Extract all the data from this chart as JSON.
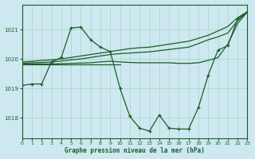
{
  "background_color": "#cde8f0",
  "grid_color": "#b0d8c8",
  "line_color": "#1a5c28",
  "title": "Graphe pression niveau de la mer (hPa)",
  "xlim": [
    0,
    23
  ],
  "ylim": [
    1017.3,
    1021.85
  ],
  "yticks": [
    1018,
    1019,
    1020,
    1021
  ],
  "xticks": [
    0,
    1,
    2,
    3,
    4,
    5,
    6,
    7,
    8,
    9,
    10,
    11,
    12,
    13,
    14,
    15,
    16,
    17,
    18,
    19,
    20,
    21,
    22,
    23
  ],
  "series": [
    {
      "x": [
        0,
        1,
        2,
        3,
        4,
        5,
        6,
        7,
        8,
        9,
        10,
        11,
        12,
        13,
        14,
        15,
        16,
        17,
        18,
        19,
        20,
        21,
        22,
        23
      ],
      "y": [
        1019.1,
        1019.15,
        1019.15,
        1019.9,
        1020.05,
        1021.05,
        1021.08,
        1020.65,
        1020.4,
        1020.25,
        1019.0,
        1018.05,
        1017.65,
        1017.55,
        1018.1,
        1017.65,
        1017.62,
        1017.62,
        1018.35,
        1019.45,
        1020.3,
        1020.45,
        1021.35,
        1021.6
      ],
      "has_markers": true
    },
    {
      "x": [
        0,
        1,
        2,
        3,
        4,
        5,
        6,
        7,
        8,
        9,
        10,
        11,
        12,
        13,
        14,
        15,
        16,
        17,
        18,
        19,
        20,
        21,
        22,
        23
      ],
      "y": [
        1019.9,
        1019.92,
        1019.95,
        1019.97,
        1020.0,
        1020.05,
        1020.1,
        1020.15,
        1020.2,
        1020.25,
        1020.3,
        1020.35,
        1020.38,
        1020.4,
        1020.45,
        1020.5,
        1020.55,
        1020.6,
        1020.7,
        1020.8,
        1020.95,
        1021.1,
        1021.4,
        1021.6
      ],
      "has_markers": false
    },
    {
      "x": [
        0,
        1,
        2,
        3,
        4,
        5,
        6,
        7,
        8,
        9,
        10,
        11,
        12,
        13,
        14,
        15,
        16,
        17,
        18,
        19,
        20,
        21,
        22,
        23
      ],
      "y": [
        1019.85,
        1019.87,
        1019.88,
        1019.9,
        1019.93,
        1019.97,
        1020.0,
        1020.05,
        1020.1,
        1020.15,
        1020.18,
        1020.2,
        1020.22,
        1020.24,
        1020.28,
        1020.32,
        1020.36,
        1020.4,
        1020.52,
        1020.65,
        1020.75,
        1020.88,
        1021.3,
        1021.6
      ],
      "has_markers": false
    },
    {
      "x": [
        0,
        1,
        2,
        3,
        4,
        5,
        6,
        7,
        8,
        9,
        10,
        11,
        12,
        13,
        14,
        15,
        16,
        17,
        18,
        19,
        20,
        21,
        22,
        23
      ],
      "y": [
        1019.82,
        1019.83,
        1019.83,
        1019.83,
        1019.84,
        1019.85,
        1019.86,
        1019.87,
        1019.9,
        1019.92,
        1019.9,
        1019.88,
        1019.87,
        1019.87,
        1019.87,
        1019.87,
        1019.85,
        1019.85,
        1019.87,
        1019.95,
        1020.05,
        1020.5,
        1021.2,
        1021.6
      ],
      "has_markers": false
    },
    {
      "x": [
        0,
        1,
        2,
        3,
        4,
        5,
        6,
        7,
        8,
        9,
        10
      ],
      "y": [
        1019.82,
        1019.82,
        1019.82,
        1019.82,
        1019.82,
        1019.82,
        1019.82,
        1019.82,
        1019.82,
        1019.82,
        1019.82
      ],
      "has_markers": false
    }
  ]
}
